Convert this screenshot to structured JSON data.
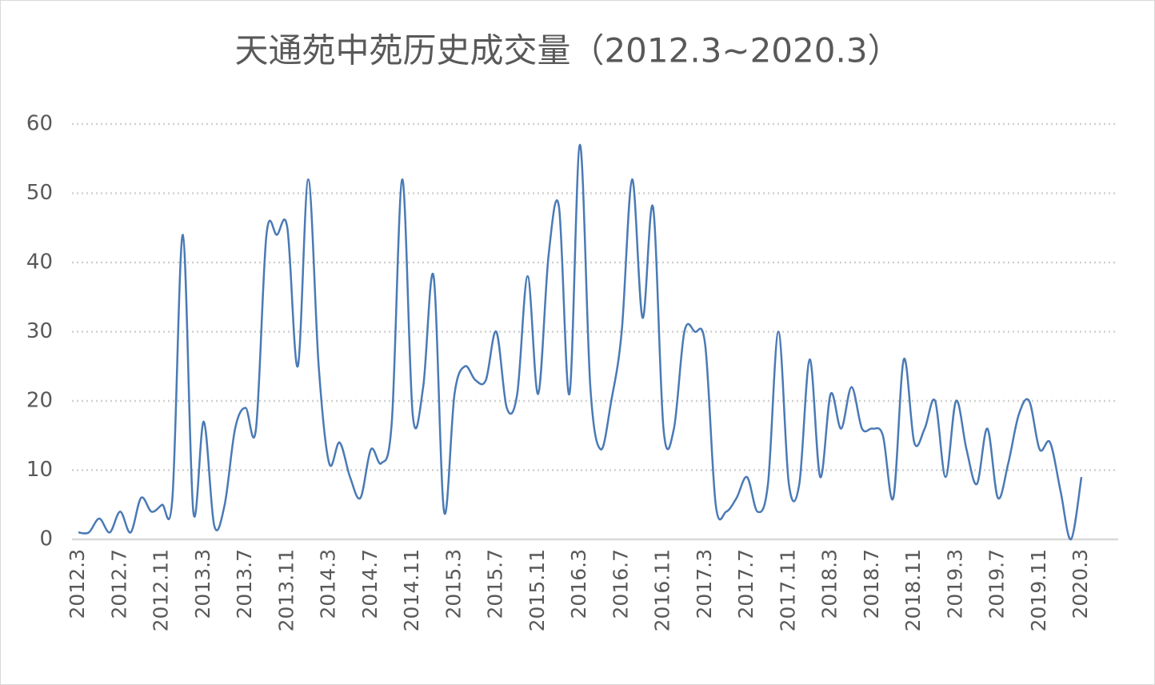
{
  "chart_data": {
    "type": "line",
    "title": "天通苑中苑历史成交量（2012.3~2020.3）",
    "categories": [
      "2012.3",
      null,
      null,
      null,
      "2012.7",
      null,
      null,
      null,
      "2012.11",
      null,
      null,
      null,
      "2013.3",
      null,
      null,
      null,
      "2013.7",
      null,
      null,
      null,
      "2013.11",
      null,
      null,
      null,
      "2014.3",
      null,
      null,
      null,
      "2014.7",
      null,
      null,
      null,
      "2014.11",
      null,
      null,
      null,
      "2015.3",
      null,
      null,
      null,
      "2015.7",
      null,
      null,
      null,
      "2015.11",
      null,
      null,
      null,
      "2016.3",
      null,
      null,
      null,
      "2016.7",
      null,
      null,
      null,
      "2016.11",
      null,
      null,
      null,
      "2017.3",
      null,
      null,
      null,
      "2017.7",
      null,
      null,
      null,
      "2017.11",
      null,
      null,
      null,
      "2018.3",
      null,
      null,
      null,
      "2018.7",
      null,
      null,
      null,
      "2018.11",
      null,
      null,
      null,
      "2019.3",
      null,
      null,
      null,
      "2019.7",
      null,
      null,
      null,
      "2019.11",
      null,
      null,
      null,
      "2020.3"
    ],
    "series": [
      {
        "color": "#4a7ab5",
        "values": [
          1,
          1,
          3,
          1,
          4,
          1,
          6,
          4,
          5,
          6,
          44,
          4,
          17,
          2,
          5,
          16,
          19,
          16,
          44,
          44,
          45,
          25,
          52,
          25,
          11,
          14,
          9,
          6,
          13,
          11,
          17,
          52,
          18,
          22,
          38,
          4,
          21,
          25,
          23,
          23,
          30,
          19,
          21,
          38,
          21,
          41,
          48,
          21,
          57,
          22,
          13,
          20,
          30,
          52,
          32,
          48,
          16,
          16,
          30,
          30,
          28,
          5,
          4,
          6,
          9,
          4,
          8,
          30,
          8,
          8,
          26,
          9,
          21,
          16,
          22,
          16,
          16,
          15,
          6,
          26,
          14,
          16,
          20,
          9,
          20,
          13,
          8,
          16,
          6,
          11,
          18,
          20,
          13,
          14,
          7,
          0,
          9
        ]
      }
    ],
    "ylim": [
      0,
      60
    ],
    "yticks": [
      0,
      10,
      20,
      30,
      40,
      50,
      60
    ],
    "grid": true
  }
}
